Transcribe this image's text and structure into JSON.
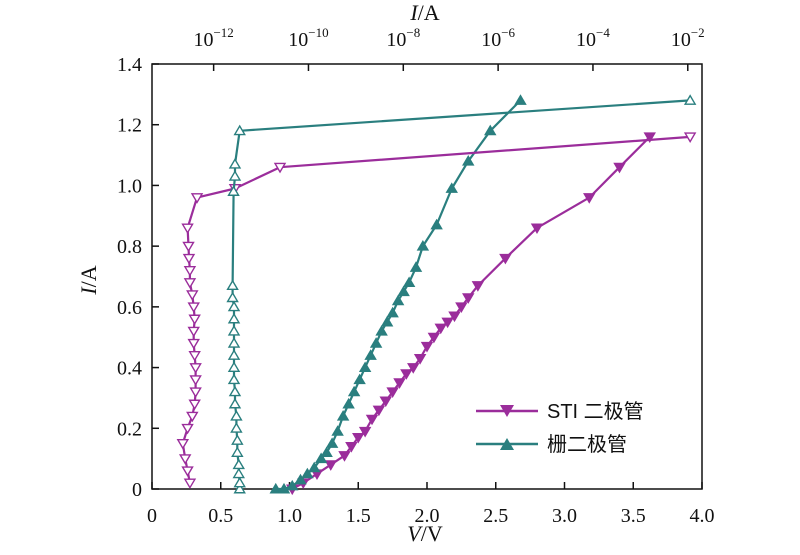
{
  "chart_data": {
    "type": "line",
    "xlabel_bottom": {
      "var": "V",
      "unit": "/V"
    },
    "xlabel_top": {
      "var": "I",
      "unit": "/A"
    },
    "ylabel": {
      "var": "I",
      "unit": "/A"
    },
    "xlim_bottom": [
      0,
      4.0
    ],
    "xlim_top_log10": [
      -13.3,
      -1.7
    ],
    "ylim": [
      0,
      1.4
    ],
    "x_bottom_ticks": [
      "0",
      "0.5",
      "1.0",
      "1.5",
      "2.0",
      "2.5",
      "3.0",
      "3.5",
      "4.0"
    ],
    "x_top_ticks": [
      {
        "base": "10",
        "exp": "−12",
        "log": -12
      },
      {
        "base": "10",
        "exp": "−10",
        "log": -10
      },
      {
        "base": "10",
        "exp": "−8",
        "log": -8
      },
      {
        "base": "10",
        "exp": "−6",
        "log": -6
      },
      {
        "base": "10",
        "exp": "−4",
        "log": -4
      },
      {
        "base": "10",
        "exp": "−2",
        "log": -2
      }
    ],
    "y_ticks": [
      "0",
      "0.2",
      "0.4",
      "0.6",
      "0.8",
      "1.0",
      "1.2",
      "1.4"
    ],
    "legend_position": "bottom-right",
    "series": [
      {
        "name": "STI 二极管",
        "color": "#9b2d9b",
        "marker": "triangle-down",
        "axis": "bottom",
        "fill": true,
        "points": [
          [
            1.02,
            0
          ],
          [
            1.1,
            0.02
          ],
          [
            1.2,
            0.05
          ],
          [
            1.3,
            0.08
          ],
          [
            1.4,
            0.11
          ],
          [
            1.45,
            0.14
          ],
          [
            1.5,
            0.17
          ],
          [
            1.55,
            0.19
          ],
          [
            1.6,
            0.23
          ],
          [
            1.65,
            0.26
          ],
          [
            1.7,
            0.29
          ],
          [
            1.75,
            0.32
          ],
          [
            1.8,
            0.35
          ],
          [
            1.85,
            0.38
          ],
          [
            1.9,
            0.4
          ],
          [
            1.95,
            0.43
          ],
          [
            2.0,
            0.47
          ],
          [
            2.05,
            0.5
          ],
          [
            2.1,
            0.53
          ],
          [
            2.15,
            0.55
          ],
          [
            2.2,
            0.57
          ],
          [
            2.25,
            0.6
          ],
          [
            2.3,
            0.63
          ],
          [
            2.37,
            0.67
          ],
          [
            2.57,
            0.76
          ],
          [
            2.8,
            0.86
          ],
          [
            3.18,
            0.96
          ],
          [
            3.4,
            1.06
          ],
          [
            3.62,
            1.16
          ]
        ]
      },
      {
        "name": "栅二极管",
        "color": "#2a7f7f",
        "marker": "triangle-up",
        "axis": "bottom",
        "fill": true,
        "points": [
          [
            0.9,
            0
          ],
          [
            0.96,
            0
          ],
          [
            1.02,
            0.01
          ],
          [
            1.08,
            0.03
          ],
          [
            1.13,
            0.05
          ],
          [
            1.18,
            0.07
          ],
          [
            1.23,
            0.1
          ],
          [
            1.27,
            0.12
          ],
          [
            1.31,
            0.15
          ],
          [
            1.35,
            0.19
          ],
          [
            1.39,
            0.24
          ],
          [
            1.43,
            0.28
          ],
          [
            1.47,
            0.32
          ],
          [
            1.51,
            0.36
          ],
          [
            1.55,
            0.4
          ],
          [
            1.59,
            0.44
          ],
          [
            1.63,
            0.48
          ],
          [
            1.67,
            0.52
          ],
          [
            1.71,
            0.55
          ],
          [
            1.75,
            0.58
          ],
          [
            1.79,
            0.62
          ],
          [
            1.83,
            0.65
          ],
          [
            1.87,
            0.68
          ],
          [
            1.92,
            0.73
          ],
          [
            1.97,
            0.8
          ],
          [
            2.07,
            0.87
          ],
          [
            2.18,
            0.99
          ],
          [
            2.3,
            1.08
          ],
          [
            2.46,
            1.18
          ],
          [
            2.68,
            1.28
          ]
        ]
      },
      {
        "name": "STI 二极管 (I/A)",
        "color": "#9b2d9b",
        "marker": "triangle-down",
        "axis": "top",
        "fill": false,
        "points": [
          [
            -12.5,
            0.02
          ],
          [
            -12.55,
            0.06
          ],
          [
            -12.6,
            0.1
          ],
          [
            -12.65,
            0.15
          ],
          [
            -12.55,
            0.2
          ],
          [
            -12.45,
            0.24
          ],
          [
            -12.4,
            0.28
          ],
          [
            -12.38,
            0.32
          ],
          [
            -12.38,
            0.36
          ],
          [
            -12.38,
            0.4
          ],
          [
            -12.4,
            0.44
          ],
          [
            -12.42,
            0.48
          ],
          [
            -12.42,
            0.52
          ],
          [
            -12.4,
            0.56
          ],
          [
            -12.42,
            0.6
          ],
          [
            -12.45,
            0.64
          ],
          [
            -12.5,
            0.68
          ],
          [
            -12.5,
            0.72
          ],
          [
            -12.52,
            0.76
          ],
          [
            -12.53,
            0.8
          ],
          [
            -12.55,
            0.86
          ],
          [
            -12.35,
            0.96
          ],
          [
            -11.55,
            0.99
          ],
          [
            -10.6,
            1.06
          ],
          [
            -1.95,
            1.16
          ]
        ]
      },
      {
        "name": "栅二极管 (I/A)",
        "color": "#2a7f7f",
        "marker": "triangle-up",
        "axis": "top",
        "fill": false,
        "points": [
          [
            -11.45,
            0.0
          ],
          [
            -11.45,
            0.02
          ],
          [
            -11.47,
            0.05
          ],
          [
            -11.47,
            0.08
          ],
          [
            -11.5,
            0.12
          ],
          [
            -11.5,
            0.16
          ],
          [
            -11.52,
            0.2
          ],
          [
            -11.52,
            0.24
          ],
          [
            -11.55,
            0.28
          ],
          [
            -11.55,
            0.32
          ],
          [
            -11.57,
            0.36
          ],
          [
            -11.57,
            0.4
          ],
          [
            -11.57,
            0.44
          ],
          [
            -11.57,
            0.48
          ],
          [
            -11.57,
            0.52
          ],
          [
            -11.57,
            0.56
          ],
          [
            -11.57,
            0.6
          ],
          [
            -11.6,
            0.63
          ],
          [
            -11.6,
            0.67
          ],
          [
            -11.58,
            0.98
          ],
          [
            -11.55,
            1.03
          ],
          [
            -11.55,
            1.07
          ],
          [
            -11.45,
            1.18
          ],
          [
            -1.95,
            1.28
          ]
        ]
      }
    ]
  }
}
